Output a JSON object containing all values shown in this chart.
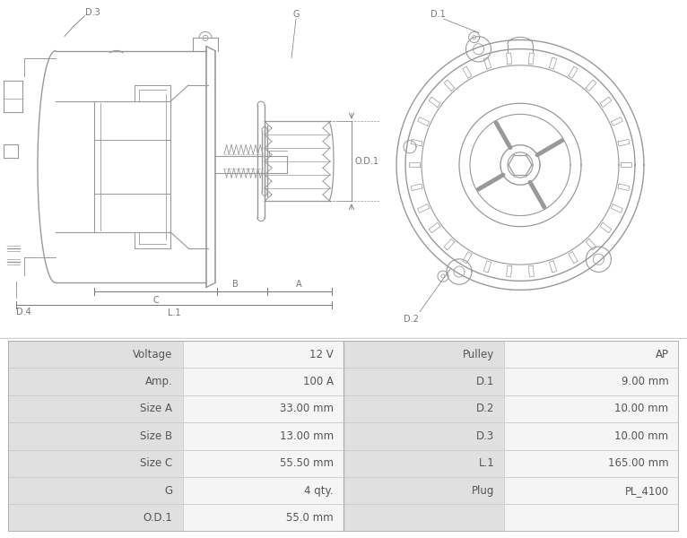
{
  "table_rows": [
    [
      "Voltage",
      "12 V",
      "Pulley",
      "AP"
    ],
    [
      "Amp.",
      "100 A",
      "D.1",
      "9.00 mm"
    ],
    [
      "Size A",
      "33.00 mm",
      "D.2",
      "10.00 mm"
    ],
    [
      "Size B",
      "13.00 mm",
      "D.3",
      "10.00 mm"
    ],
    [
      "Size C",
      "55.50 mm",
      "L.1",
      "165.00 mm"
    ],
    [
      "G",
      "4 qty.",
      "Plug",
      "PL_4100"
    ],
    [
      "O.D.1",
      "55.0 mm",
      "",
      ""
    ]
  ],
  "line_color": "#999999",
  "text_color": "#555555",
  "dim_color": "#777777",
  "table_label_bg": "#e0e0e0",
  "table_value_bg": "#f5f5f5",
  "table_border": "#cccccc",
  "fig_bg": "#ffffff"
}
